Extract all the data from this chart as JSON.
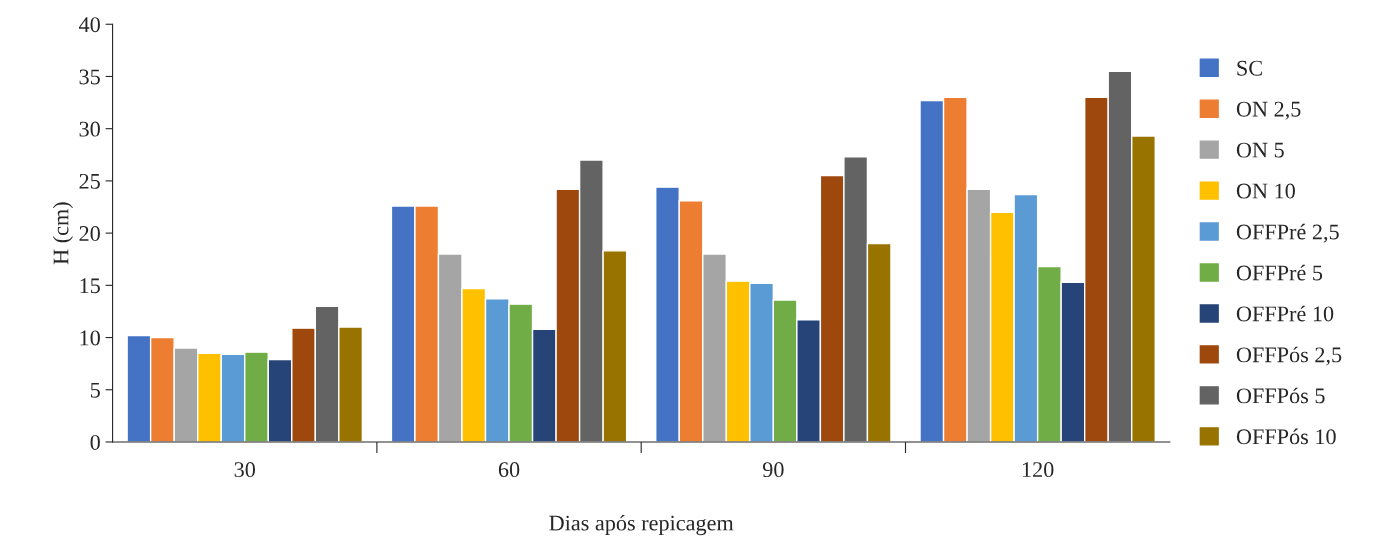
{
  "chart_data": {
    "type": "bar",
    "xlabel": "Dias após repicagem",
    "ylabel": "H (cm)",
    "categories": [
      "30",
      "60",
      "90",
      "120"
    ],
    "ylim": [
      0,
      40
    ],
    "yticks": [
      0,
      5,
      10,
      15,
      20,
      25,
      30,
      35,
      40
    ],
    "grid": false,
    "legend": "right",
    "series": [
      {
        "name": "SC",
        "color": "#4472c4",
        "values": [
          10.2,
          22.6,
          24.4,
          32.7
        ]
      },
      {
        "name": "ON 2,5",
        "color": "#ed7d31",
        "values": [
          10.0,
          22.6,
          23.1,
          33.0
        ]
      },
      {
        "name": "ON 5",
        "color": "#a5a5a5",
        "values": [
          9.0,
          18.0,
          18.0,
          24.2
        ]
      },
      {
        "name": "ON 10",
        "color": "#ffc000",
        "values": [
          8.5,
          14.7,
          15.4,
          22.0
        ]
      },
      {
        "name": "OFFPré 2,5",
        "color": "#5b9bd5",
        "values": [
          8.4,
          13.7,
          15.2,
          23.7
        ]
      },
      {
        "name": "OFFPré 5",
        "color": "#70ad47",
        "values": [
          8.6,
          13.2,
          13.6,
          16.8
        ]
      },
      {
        "name": "OFFPré 10",
        "color": "#264478",
        "values": [
          7.9,
          10.8,
          11.7,
          15.3
        ]
      },
      {
        "name": "OFFPós 2,5",
        "color": "#9e480e",
        "values": [
          10.9,
          24.2,
          25.5,
          33.0
        ]
      },
      {
        "name": "OFFPós 5",
        "color": "#636363",
        "values": [
          13.0,
          27.0,
          27.3,
          35.5
        ]
      },
      {
        "name": "OFFPós 10",
        "color": "#997300",
        "values": [
          11.0,
          18.3,
          19.0,
          29.3
        ]
      }
    ]
  }
}
